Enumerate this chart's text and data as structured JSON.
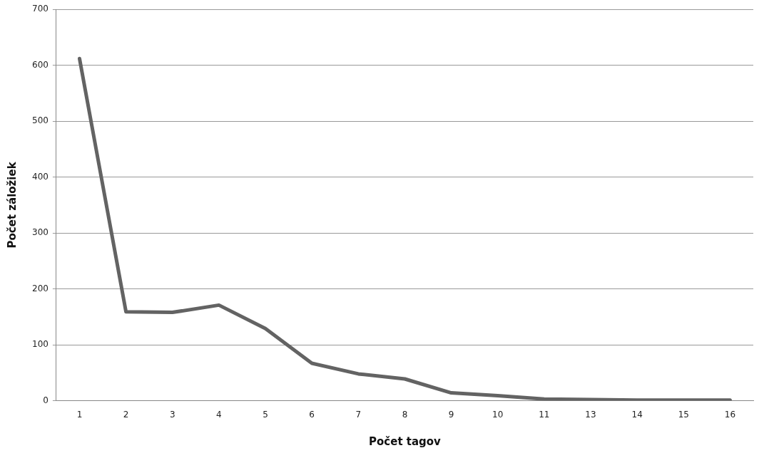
{
  "chart_data": {
    "type": "line",
    "xlabel": "Počet tagov",
    "ylabel": "Počet záložiek",
    "categories": [
      "1",
      "2",
      "3",
      "4",
      "5",
      "6",
      "7",
      "8",
      "9",
      "10",
      "11",
      "13",
      "14",
      "15",
      "16"
    ],
    "series": [
      {
        "color": "#636363",
        "values": [
          612,
          159,
          158,
          171,
          129,
          67,
          48,
          39,
          14,
          9,
          3,
          2,
          1,
          1,
          1
        ]
      }
    ],
    "ylim": [
      0,
      700
    ],
    "yticks": [
      0,
      100,
      200,
      300,
      400,
      500,
      600,
      700
    ],
    "grid": "y",
    "legend": false,
    "marker": "none",
    "line_style": "solid"
  }
}
